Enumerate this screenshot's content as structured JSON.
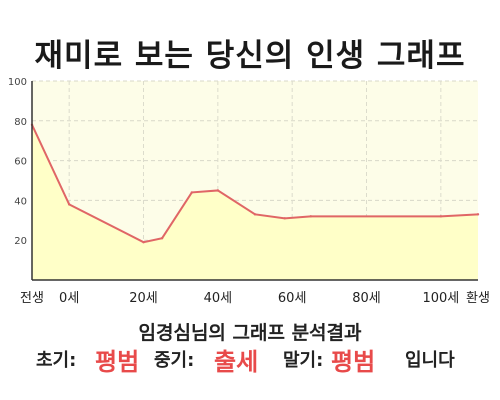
{
  "title": "재미로 보는 당신의 인생 그래프",
  "chart_data": {
    "type": "area",
    "title": "재미로 보는 당신의 인생 그래프",
    "x_ticks": [
      {
        "x": -10,
        "label": "전생"
      },
      {
        "x": 0,
        "label": "0세"
      },
      {
        "x": 20,
        "label": "20세"
      },
      {
        "x": 40,
        "label": "40세"
      },
      {
        "x": 60,
        "label": "60세"
      },
      {
        "x": 80,
        "label": "80세"
      },
      {
        "x": 100,
        "label": "100세"
      },
      {
        "x": 110,
        "label": "환생"
      }
    ],
    "y_ticks": [
      20,
      40,
      60,
      80,
      100
    ],
    "xlim": [
      -10,
      110
    ],
    "ylim": [
      0,
      100
    ],
    "grid": true,
    "series": [
      {
        "points": [
          {
            "x": -10,
            "y": 78
          },
          {
            "x": 0,
            "y": 38
          },
          {
            "x": 20,
            "y": 19
          },
          {
            "x": 25,
            "y": 21
          },
          {
            "x": 33,
            "y": 44
          },
          {
            "x": 40,
            "y": 45
          },
          {
            "x": 50,
            "y": 33
          },
          {
            "x": 58,
            "y": 31
          },
          {
            "x": 65,
            "y": 32
          },
          {
            "x": 100,
            "y": 32
          },
          {
            "x": 110,
            "y": 33
          }
        ]
      }
    ],
    "colors": {
      "line": "#e06666",
      "fill": "#ffffc8",
      "plot_bg": "#fdfde8"
    }
  },
  "subtitle": "임경심님의 그래프 분석결과",
  "result": {
    "early_label": "초기:",
    "early_value": "평범",
    "mid_label": "중기:",
    "mid_value": "출세",
    "late_label": "말기:",
    "late_value": "평범",
    "suffix": "입니다"
  }
}
